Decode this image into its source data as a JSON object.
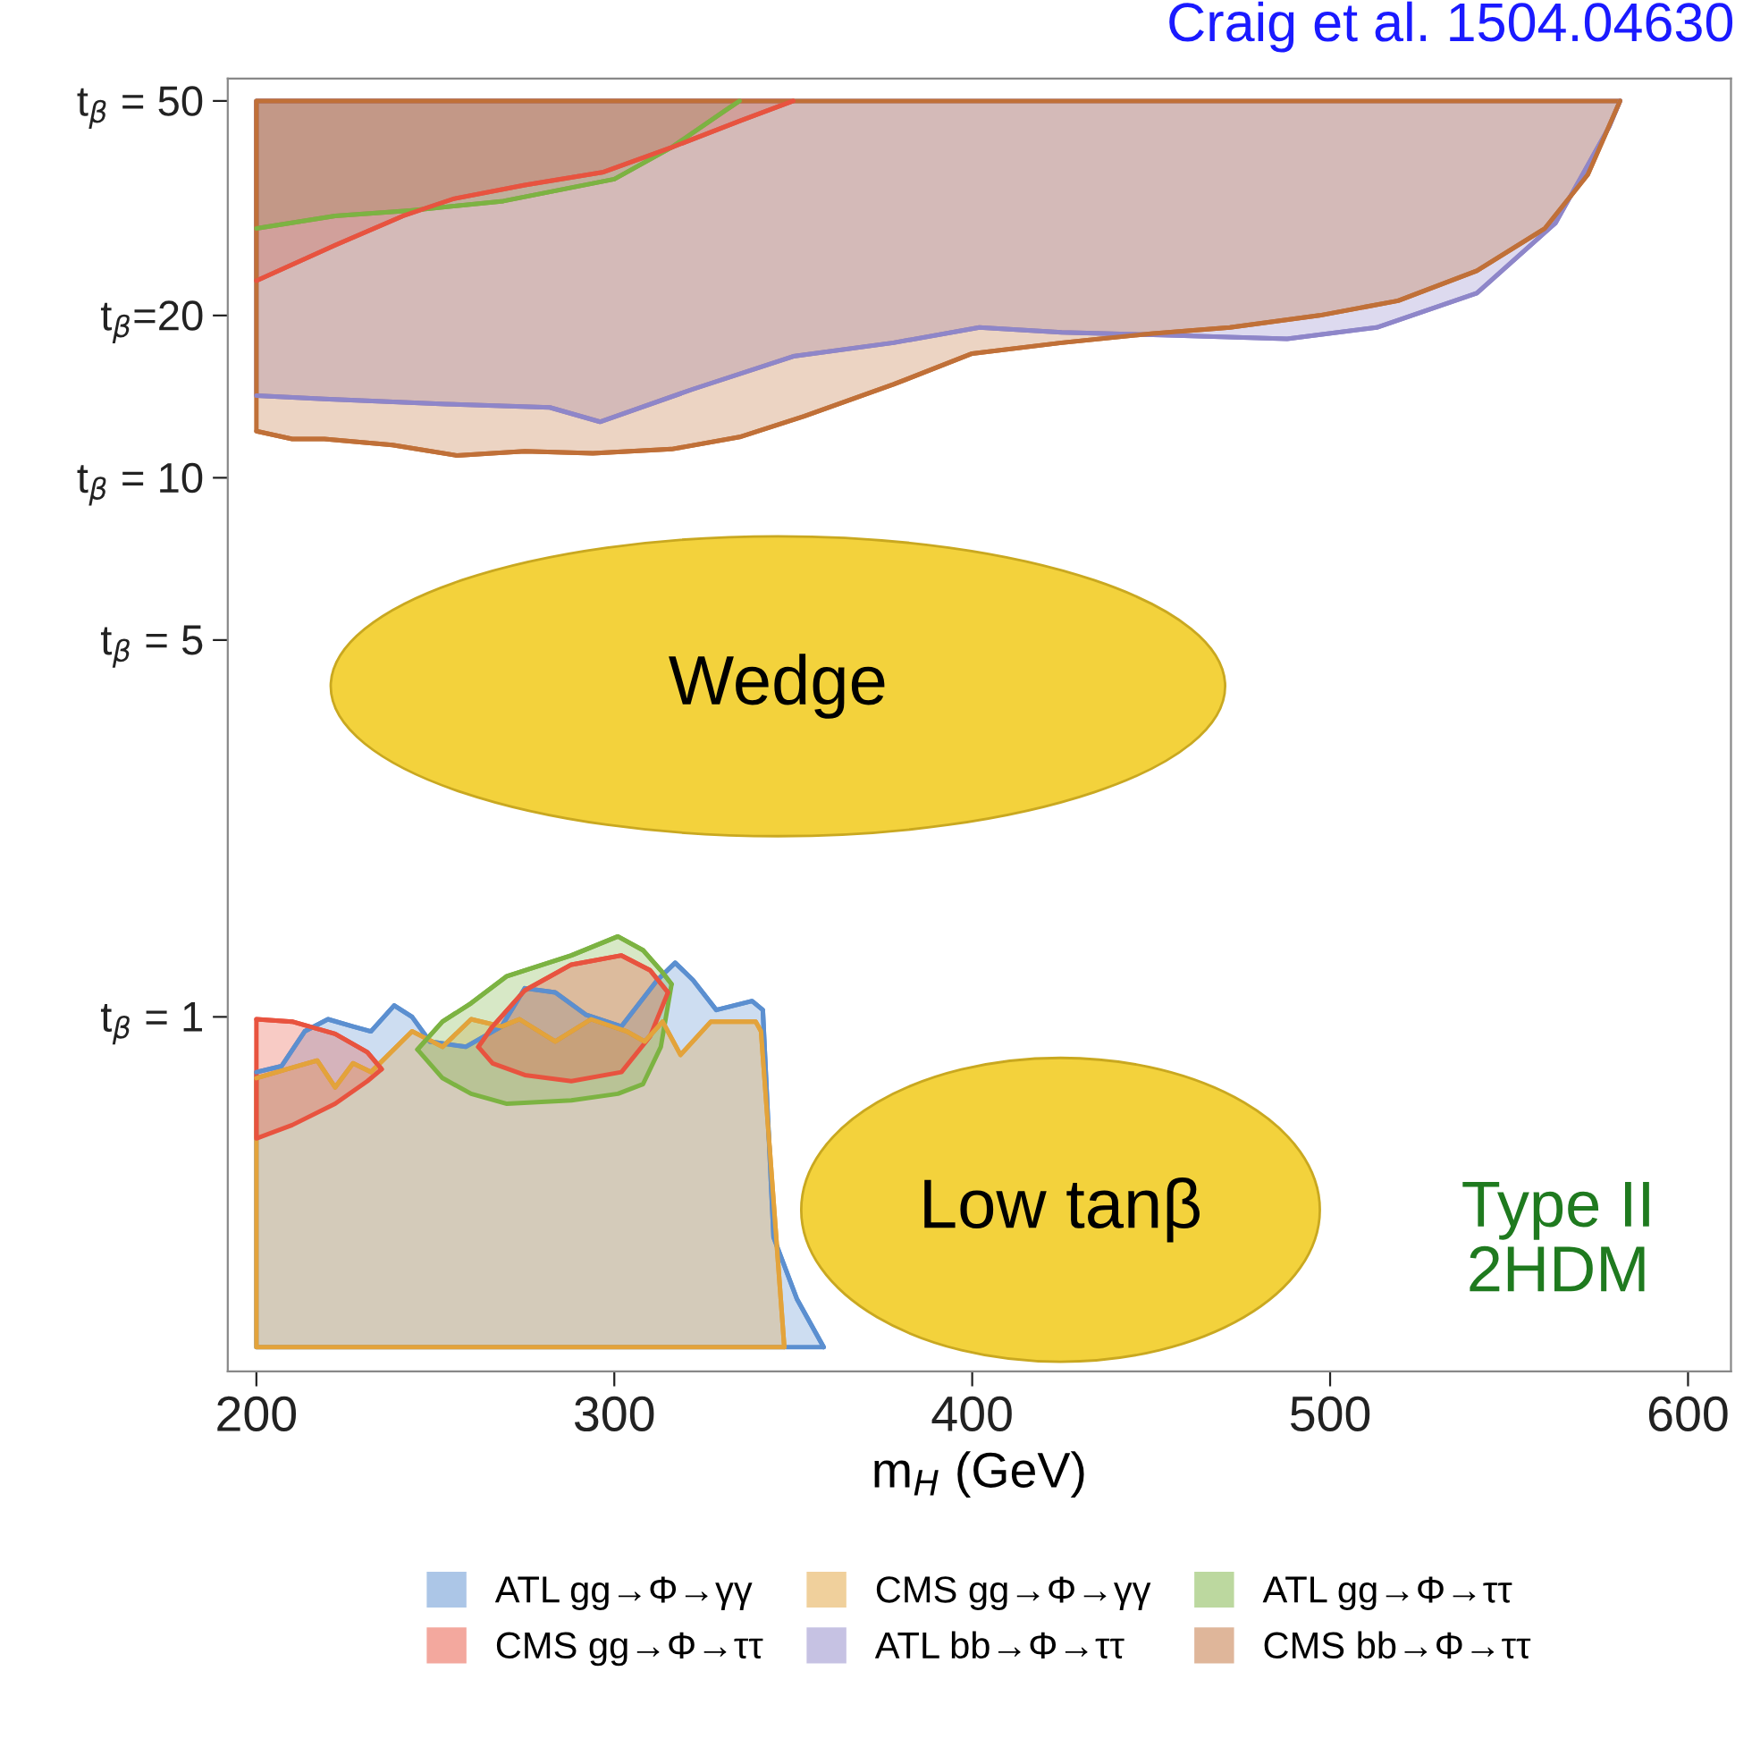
{
  "chart_data": {
    "type": "line",
    "xlabel": "m$_{H}$ (GeV)",
    "log": "y",
    "legend": "bottom",
    "xlim": [
      192,
      612
    ],
    "xticks": [
      200,
      300,
      400,
      500,
      600
    ],
    "ylim": [
      0.22,
      55
    ],
    "yticks": [
      {
        "value": 1,
        "label": "t$_{β}$ = 1"
      },
      {
        "value": 5,
        "label": "t$_{β}$ = 5"
      },
      {
        "value": 10,
        "label": "t$_{β}$ = 10"
      },
      {
        "value": 20,
        "label": "t$_{β}$=20"
      },
      {
        "value": 50,
        "label": "t$_{β}$ = 50"
      }
    ],
    "annotations": [
      "Craig et al. 1504.04630",
      "Wedge",
      "Low tanβ",
      "Type II\n2HDM"
    ],
    "series": [
      {
        "name": "ATL gg→Φ→γγ",
        "color": "#5b8fd0",
        "x": [
          200,
          207,
          213.5,
          220,
          227,
          232,
          238.5,
          243.5,
          248.5,
          258.5,
          268.5,
          275,
          283.5,
          292,
          302,
          312,
          317,
          322,
          328.5,
          338.5,
          341.5,
          344.5,
          351,
          358.5
        ],
        "values": [
          0.79,
          0.81,
          0.94,
          0.99,
          0.96,
          0.94,
          1.05,
          1.0,
          0.9,
          0.88,
          0.96,
          1.13,
          1.11,
          1.01,
          0.96,
          1.17,
          1.26,
          1.17,
          1.03,
          1.07,
          1.03,
          0.39,
          0.3,
          0.244
        ],
        "upper": [
          0.79,
          0.81,
          0.94,
          0.99,
          0.96,
          0.94,
          1.05,
          1.0,
          0.9,
          0.88,
          0.96,
          1.13,
          1.11,
          1.01,
          0.96,
          1.17,
          1.26,
          1.17,
          1.03,
          1.07,
          1.03,
          0.39,
          0.3,
          0.244
        ],
        "lower": [
          0.244,
          0.244,
          0.244,
          0.244,
          0.244,
          0.244,
          0.244,
          0.244,
          0.244,
          0.244,
          0.244,
          0.244,
          0.244,
          0.244,
          0.244,
          0.244,
          0.244,
          0.244,
          0.244,
          0.244,
          0.244,
          0.244,
          0.244,
          0.244
        ]
      },
      {
        "name": "CMS gg→Φ→γγ",
        "color": "#e3a33b",
        "x": [
          200,
          208.5,
          217,
          222,
          227,
          232,
          243.5,
          252,
          260,
          268.5,
          273.5,
          283.5,
          293.5,
          303.5,
          308.5,
          313.5,
          318.5,
          327,
          339.5,
          341,
          347.5
        ],
        "values": [
          0.77,
          0.8,
          0.83,
          0.74,
          0.82,
          0.79,
          0.94,
          0.88,
          0.99,
          0.96,
          0.99,
          0.9,
          0.99,
          0.94,
          0.9,
          0.98,
          0.85,
          0.98,
          0.98,
          0.94,
          0.244
        ],
        "upper": [
          0.77,
          0.8,
          0.83,
          0.74,
          0.82,
          0.79,
          0.94,
          0.88,
          0.99,
          0.96,
          0.99,
          0.9,
          0.99,
          0.94,
          0.9,
          0.98,
          0.85,
          0.98,
          0.98,
          0.94,
          0.244
        ],
        "lower": [
          0.244,
          0.244,
          0.244,
          0.244,
          0.244,
          0.244,
          0.244,
          0.244,
          0.244,
          0.244,
          0.244,
          0.244,
          0.244,
          0.244,
          0.244,
          0.244,
          0.244,
          0.244,
          0.244,
          0.244,
          0.244
        ]
      },
      {
        "name": "ATL gg→Φ→ττ",
        "color": "#7cb342",
        "x": [
          200,
          222,
          243,
          269,
          300,
          316,
          331,
          335,
          290,
          245,
          252,
          260,
          270,
          288,
          301,
          308,
          313,
          316
        ],
        "values": [
          29,
          30.6,
          31.3,
          32.6,
          35.8,
          41,
          48,
          50,
          null,
          0.87,
          0.98,
          1.06,
          1.19,
          1.3,
          1.41,
          1.33,
          1.22,
          1.15
        ],
        "upper": [
          50,
          50,
          50,
          50,
          50,
          50,
          50,
          50,
          null,
          0.87,
          0.98,
          1.06,
          1.19,
          1.3,
          1.41,
          1.33,
          1.22,
          1.15
        ],
        "lower": [
          29,
          30.6,
          31.3,
          32.6,
          35.8,
          41,
          48,
          50,
          null,
          0.87,
          0.77,
          0.72,
          0.69,
          0.7,
          0.72,
          0.75,
          0.88,
          1.15
        ]
      },
      {
        "name": "CMS gg→Φ→ττ",
        "color": "#e8533f",
        "x": [
          200,
          222,
          241,
          255,
          275,
          297,
          316,
          335,
          350,
          300,
          200,
          210,
          222,
          231,
          235,
          248,
          262,
          266,
          275,
          288,
          302,
          310,
          315
        ],
        "values": [
          23.2,
          27,
          30.6,
          32.9,
          34.9,
          36.9,
          41,
          45.9,
          50,
          null,
          0.99,
          0.98,
          0.93,
          0.86,
          0.8,
          null,
          0.88,
          0.96,
          1.12,
          1.25,
          1.3,
          1.22,
          1.11
        ],
        "upper": [
          50,
          50,
          50,
          50,
          50,
          50,
          50,
          50,
          50,
          null,
          0.99,
          0.98,
          0.93,
          0.86,
          0.8,
          null,
          0.88,
          0.96,
          1.12,
          1.25,
          1.3,
          1.22,
          1.11
        ],
        "lower": [
          23.2,
          27,
          30.6,
          32.9,
          34.9,
          36.9,
          41,
          45.9,
          50,
          null,
          0.595,
          0.63,
          0.69,
          0.76,
          0.8,
          null,
          0.88,
          0.82,
          0.78,
          0.76,
          0.79,
          0.92,
          1.11
        ]
      },
      {
        "name": "ATL bb→Φ→ττ",
        "color": "#8e86c9",
        "x": [
          200,
          219,
          253,
          282,
          296,
          322,
          350,
          378,
          402,
          425,
          453,
          488,
          513,
          541,
          563,
          578,
          581
        ],
        "values": [
          14.2,
          14.0,
          13.7,
          13.5,
          12.7,
          14.6,
          16.8,
          17.8,
          19.0,
          18.6,
          18.4,
          18.1,
          19.0,
          22.0,
          29.7,
          44.8,
          50
        ],
        "upper": [
          50,
          50,
          50,
          50,
          50,
          50,
          50,
          50,
          50,
          50,
          50,
          50,
          50,
          50,
          50,
          50,
          50
        ],
        "lower": [
          14.2,
          14.0,
          13.7,
          13.5,
          12.7,
          14.6,
          16.8,
          17.8,
          19.0,
          18.6,
          18.4,
          18.1,
          19.0,
          22.0,
          29.7,
          44.8,
          50
        ]
      },
      {
        "name": "CMS bb→Φ→ττ",
        "color": "#c07038",
        "x": [
          200,
          210,
          219,
          238,
          256,
          275,
          294,
          316,
          335,
          353,
          378,
          400,
          425,
          450,
          472,
          497,
          519,
          541,
          560,
          572,
          581
        ],
        "values": [
          12.2,
          11.8,
          11.8,
          11.5,
          11.0,
          11.2,
          11.1,
          11.3,
          11.9,
          13.0,
          14.9,
          17.0,
          17.8,
          18.5,
          19.0,
          20.0,
          21.3,
          24.2,
          29.0,
          36.5,
          50
        ],
        "upper": [
          50,
          50,
          50,
          50,
          50,
          50,
          50,
          50,
          50,
          50,
          50,
          50,
          50,
          50,
          50,
          50,
          50,
          50,
          50,
          50,
          50
        ],
        "lower": [
          12.2,
          11.8,
          11.8,
          11.5,
          11.0,
          11.2,
          11.1,
          11.3,
          11.9,
          13.0,
          14.9,
          17.0,
          17.8,
          18.5,
          19.0,
          20.0,
          21.3,
          24.2,
          29.0,
          36.5,
          50
        ]
      }
    ]
  }
}
